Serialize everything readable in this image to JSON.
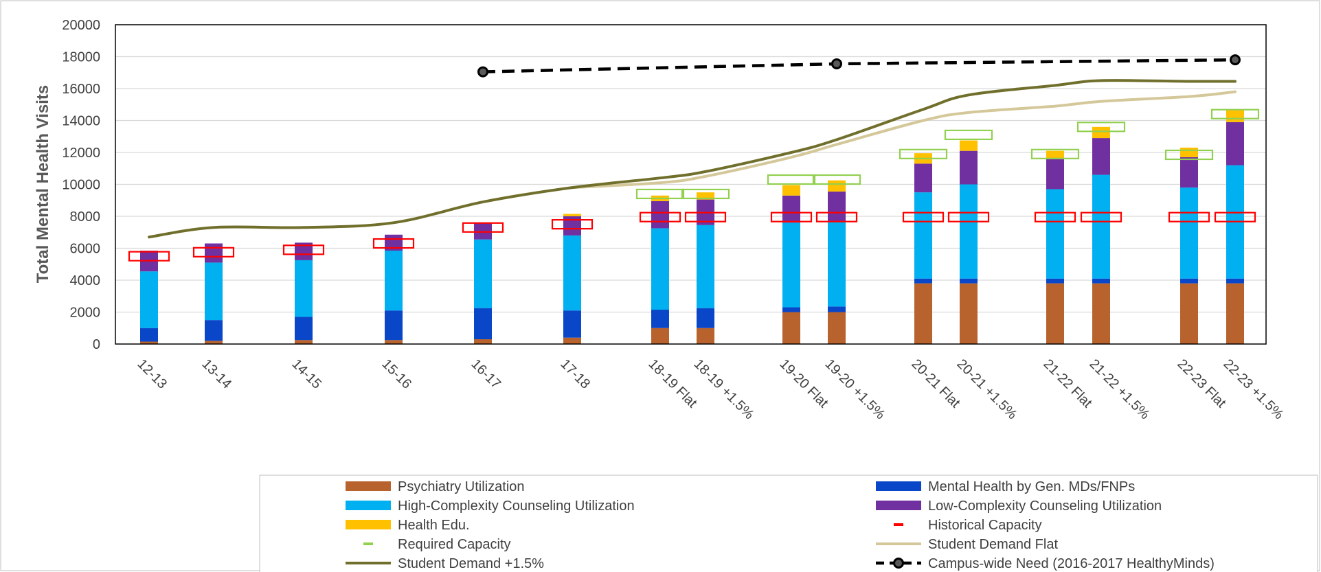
{
  "chart_data": {
    "type": "bar",
    "title": "",
    "xlabel": "",
    "ylabel": "Total Mental Health Visits",
    "ylim": [
      0,
      20000
    ],
    "yticks": [
      0,
      2000,
      4000,
      6000,
      8000,
      10000,
      12000,
      14000,
      16000,
      18000,
      20000
    ],
    "grid": "horizontal",
    "legend_position": "bottom",
    "stacked": true,
    "categories": [
      "12-13",
      "13-14",
      "14-15",
      "15-16",
      "16-17",
      "17-18",
      "18-19 Flat",
      "18-19 +1.5%",
      "19-20 Flat",
      "19-20 +1.5%",
      "20-21 Flat",
      "20-21 +1.5%",
      "21-22 Flat",
      "21-22 +1.5%",
      "22-23 Flat",
      "22-23 +1.5%"
    ],
    "series": [
      {
        "name": "Psychiatry Utilization",
        "kind": "bar",
        "color": "#B8622E",
        "values": [
          150,
          200,
          250,
          250,
          300,
          400,
          1000,
          1000,
          2000,
          2000,
          3800,
          3800,
          3800,
          3800,
          3800,
          3800
        ]
      },
      {
        "name": "Mental Health by Gen. MDs/FNPs",
        "kind": "bar",
        "color": "#0A47C8",
        "values": [
          850,
          1300,
          1450,
          1850,
          1950,
          1700,
          1150,
          1250,
          300,
          350,
          300,
          300,
          300,
          300,
          300,
          300
        ]
      },
      {
        "name": "High-Complexity Counseling Utilization",
        "kind": "bar",
        "color": "#00B0F0",
        "values": [
          3550,
          3600,
          3550,
          3750,
          4300,
          4700,
          5100,
          5200,
          5300,
          5300,
          5400,
          5900,
          5600,
          6500,
          5700,
          7100
        ]
      },
      {
        "name": "Low-Complexity Counseling Utilization",
        "kind": "bar",
        "color": "#7030A0",
        "values": [
          1300,
          1200,
          1100,
          1000,
          1050,
          1200,
          1700,
          1600,
          1700,
          1900,
          1800,
          2100,
          1900,
          2300,
          1900,
          2700
        ]
      },
      {
        "name": "Health Edu.",
        "kind": "bar",
        "color": "#FFC000",
        "values": [
          0,
          0,
          0,
          0,
          0,
          150,
          350,
          450,
          650,
          700,
          650,
          650,
          500,
          700,
          600,
          800
        ]
      },
      {
        "name": "Historical Capacity",
        "kind": "marker",
        "color": "#FF0000",
        "values": [
          5500,
          5750,
          5900,
          6300,
          7300,
          7500,
          7950,
          7950,
          7950,
          7950,
          7950,
          7950,
          7950,
          7950,
          7950,
          7950
        ]
      },
      {
        "name": "Required Capacity",
        "kind": "marker",
        "color": "#92D050",
        "values": [
          null,
          null,
          null,
          null,
          null,
          null,
          9400,
          9400,
          10300,
          10300,
          11900,
          13100,
          11900,
          13600,
          11850,
          14400
        ]
      },
      {
        "name": "Student Demand Flat",
        "kind": "line",
        "color": "#D4C89A",
        "values": [
          null,
          null,
          null,
          null,
          null,
          9800,
          10100,
          10500,
          11700,
          12500,
          14000,
          14500,
          14900,
          15200,
          15500,
          15800
        ]
      },
      {
        "name": "Student Demand +1.5%",
        "kind": "line",
        "color": "#706F2C",
        "values": [
          6700,
          7300,
          7300,
          7600,
          8900,
          9800,
          10400,
          10800,
          12000,
          12800,
          14700,
          15600,
          16200,
          16500,
          16450,
          16450
        ]
      },
      {
        "name": "Campus-wide Need (2016-2017 HealthyMinds)",
        "kind": "dashed-line",
        "color": "#000000",
        "points": [
          {
            "x": "16-17",
            "y": 17050
          },
          {
            "x": "19-20 +1.5%",
            "y": 17550
          },
          {
            "x": "22-23 +1.5%",
            "y": 17800
          }
        ]
      }
    ]
  }
}
